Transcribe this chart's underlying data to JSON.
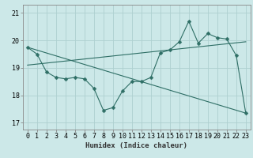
{
  "title": "",
  "xlabel": "Humidex (Indice chaleur)",
  "bg_color": "#cce8e8",
  "line_color": "#2e6e65",
  "grid_color": "#aed0d0",
  "axis_color": "#888888",
  "xlim": [
    -0.5,
    23.5
  ],
  "ylim": [
    16.75,
    21.3
  ],
  "yticks": [
    17,
    18,
    19,
    20,
    21
  ],
  "xticks": [
    0,
    1,
    2,
    3,
    4,
    5,
    6,
    7,
    8,
    9,
    10,
    11,
    12,
    13,
    14,
    15,
    16,
    17,
    18,
    19,
    20,
    21,
    22,
    23
  ],
  "main_x": [
    0,
    1,
    2,
    3,
    4,
    5,
    6,
    7,
    8,
    9,
    10,
    11,
    12,
    13,
    14,
    15,
    16,
    17,
    18,
    19,
    20,
    21,
    22,
    23
  ],
  "main_y": [
    19.75,
    19.5,
    18.85,
    18.65,
    18.6,
    18.65,
    18.6,
    18.25,
    17.45,
    17.55,
    18.15,
    18.5,
    18.5,
    18.65,
    19.55,
    19.65,
    19.95,
    20.7,
    19.9,
    20.25,
    20.1,
    20.05,
    19.45,
    17.35
  ],
  "trend1_x": [
    0,
    23
  ],
  "trend1_y": [
    19.1,
    19.95
  ],
  "trend2_x": [
    0,
    23
  ],
  "trend2_y": [
    19.75,
    17.35
  ],
  "marker_size": 2.5,
  "xlabel_fontsize": 6.5,
  "tick_fontsize": 6
}
